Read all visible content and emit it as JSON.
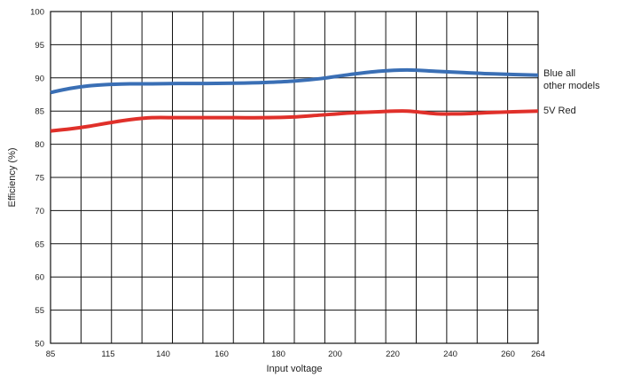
{
  "chart_data": {
    "type": "line",
    "title": "",
    "xlabel": "Input voltage",
    "ylabel": "Efficiency (%)",
    "x_ticks": [
      85,
      115,
      140,
      160,
      180,
      200,
      220,
      240,
      260,
      264
    ],
    "y_ticks": [
      50,
      55,
      60,
      65,
      70,
      75,
      80,
      85,
      90,
      95,
      100
    ],
    "xlim": [
      85,
      264
    ],
    "ylim": [
      50,
      100
    ],
    "grid": true,
    "series": [
      {
        "name": "Blue all other models",
        "color": "#3a6fb5",
        "x": [
          85,
          95,
          105,
          115,
          125,
          135,
          145,
          155,
          165,
          175,
          185,
          195,
          205,
          215,
          225,
          235,
          245,
          255,
          264
        ],
        "y": [
          87.8,
          88.4,
          88.8,
          89.0,
          89.1,
          89.1,
          89.15,
          89.15,
          89.2,
          89.3,
          89.5,
          89.9,
          90.5,
          91.0,
          91.2,
          91.0,
          90.8,
          90.6,
          90.4
        ]
      },
      {
        "name": "5V Red",
        "color": "#e0302a",
        "x": [
          85,
          95,
          105,
          115,
          125,
          135,
          145,
          155,
          165,
          175,
          185,
          195,
          205,
          215,
          225,
          235,
          245,
          255,
          264
        ],
        "y": [
          82.0,
          82.3,
          82.7,
          83.2,
          83.7,
          84.0,
          84.0,
          84.0,
          84.0,
          84.0,
          84.1,
          84.4,
          84.7,
          84.9,
          85.0,
          84.6,
          84.6,
          84.8,
          85.0
        ]
      }
    ],
    "legend_labels": [
      {
        "series": 0,
        "lines": [
          "Blue all",
          "other models"
        ]
      },
      {
        "series": 1,
        "lines": [
          "5V Red"
        ]
      }
    ]
  }
}
